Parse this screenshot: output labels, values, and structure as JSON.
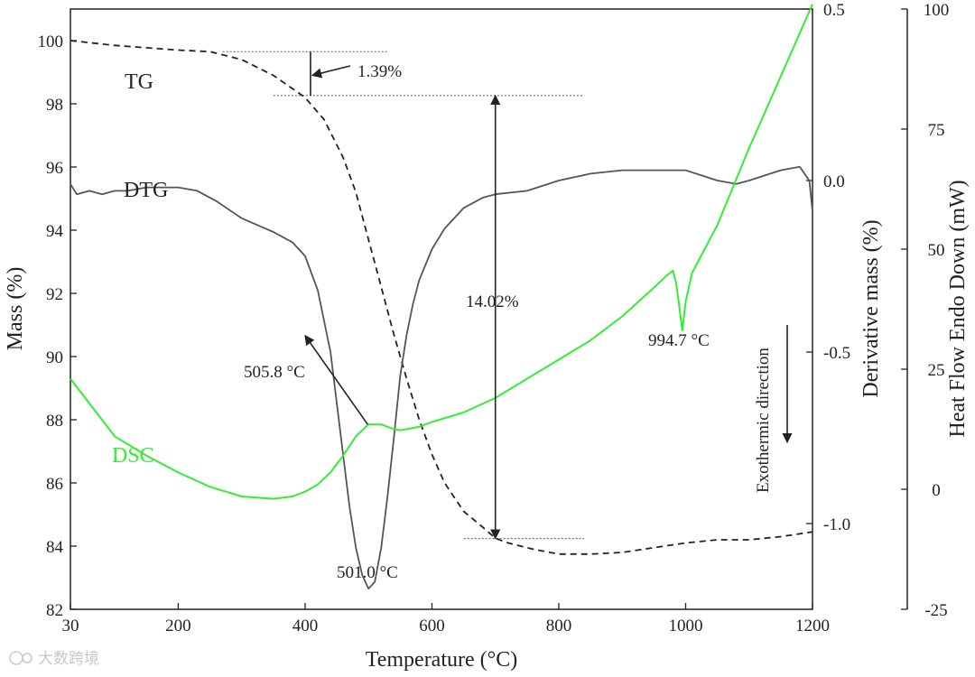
{
  "chart_data": {
    "type": "line",
    "xlabel": "Temperature (°C)",
    "ylabel_left": "Mass (%)",
    "ylabel_right_inner": "Derivative mass (%)",
    "ylabel_right_outer": "Heat Flow Endo Down (mW)",
    "xlim": [
      30,
      1200
    ],
    "ylim_mass": [
      82,
      101
    ],
    "ylim_deriv": [
      -1.25,
      0.5
    ],
    "ylim_heat": [
      -25,
      100
    ],
    "x_ticks": [
      30,
      200,
      400,
      600,
      800,
      1000,
      1200
    ],
    "mass_ticks": [
      82,
      84,
      86,
      88,
      90,
      92,
      94,
      96,
      98,
      100
    ],
    "deriv_ticks": [
      0.5,
      0.0,
      -0.5,
      -1.0
    ],
    "deriv_tick_labels": [
      "0.5",
      "0.0",
      "-0.5",
      "-1.0"
    ],
    "heat_ticks": [
      100,
      75,
      50,
      25,
      0,
      -25
    ],
    "series": [
      {
        "name": "TG",
        "axis": "mass",
        "color": "#222222",
        "dash": "dashed",
        "x": [
          30,
          100,
          200,
          250,
          300,
          350,
          400,
          430,
          460,
          480,
          500,
          520,
          540,
          560,
          580,
          600,
          620,
          650,
          680,
          700,
          720,
          760,
          800,
          850,
          900,
          950,
          1000,
          1050,
          1100,
          1150,
          1200
        ],
        "y": [
          100.0,
          99.85,
          99.7,
          99.65,
          99.4,
          98.9,
          98.2,
          97.5,
          96.3,
          95.2,
          93.7,
          92.2,
          90.7,
          89.3,
          88.0,
          86.9,
          86.0,
          85.1,
          84.6,
          84.25,
          84.1,
          83.9,
          83.75,
          83.75,
          83.8,
          83.95,
          84.1,
          84.2,
          84.2,
          84.3,
          84.45
        ]
      },
      {
        "name": "DTG",
        "axis": "deriv",
        "color": "#555555",
        "dash": "solid",
        "x": [
          30,
          40,
          60,
          80,
          100,
          120,
          150,
          180,
          200,
          230,
          260,
          300,
          350,
          380,
          400,
          420,
          440,
          460,
          470,
          480,
          490,
          500,
          510,
          520,
          530,
          540,
          550,
          560,
          570,
          580,
          600,
          620,
          650,
          680,
          700,
          750,
          800,
          850,
          900,
          950,
          1000,
          1050,
          1080,
          1100,
          1150,
          1180,
          1195,
          1200
        ],
        "y": [
          -0.01,
          -0.04,
          -0.03,
          -0.04,
          -0.03,
          -0.03,
          -0.02,
          -0.02,
          -0.02,
          -0.03,
          -0.06,
          -0.11,
          -0.15,
          -0.18,
          -0.22,
          -0.32,
          -0.5,
          -0.8,
          -0.95,
          -1.07,
          -1.15,
          -1.19,
          -1.17,
          -1.07,
          -0.92,
          -0.75,
          -0.57,
          -0.45,
          -0.36,
          -0.29,
          -0.2,
          -0.14,
          -0.08,
          -0.05,
          -0.04,
          -0.03,
          0.0,
          0.02,
          0.03,
          0.03,
          0.03,
          0.0,
          -0.01,
          0.0,
          0.03,
          0.04,
          0.0,
          -0.09
        ]
      },
      {
        "name": "DSC",
        "axis": "heat",
        "color": "#33ee33",
        "dash": "solid",
        "x": [
          30,
          100,
          150,
          200,
          250,
          300,
          350,
          380,
          400,
          420,
          440,
          460,
          480,
          500,
          520,
          530,
          540,
          550,
          560,
          580,
          600,
          650,
          700,
          750,
          800,
          850,
          900,
          950,
          970,
          980,
          985,
          990,
          994.7,
          1000,
          1010,
          1050,
          1100,
          1150,
          1200
        ],
        "y": [
          23,
          11,
          7,
          3.5,
          0.5,
          -1.5,
          -2.0,
          -1.5,
          -0.5,
          1.0,
          3.5,
          7,
          11,
          13.5,
          13.5,
          13,
          12.5,
          12.3,
          12.5,
          13,
          14,
          16,
          19,
          23,
          27,
          31,
          36,
          42,
          44.5,
          45.5,
          43,
          38,
          33,
          39,
          45,
          55,
          71,
          86,
          101
        ]
      }
    ],
    "labels": {
      "tg": "TG",
      "dtg": "DTG",
      "dsc": "DSC"
    },
    "annotations": {
      "step1": "1.39%",
      "step2": "14.02%",
      "peak_dsc": "505.8 °C",
      "peak_dtg": "501.0 °C",
      "peak_dsc2": "994.7 °C",
      "exo": "Exothermic direction"
    },
    "annotation_values": {
      "step1_x": 400,
      "step1_top": 99.65,
      "step1_bottom": 98.26,
      "step2_x": 700,
      "step2_top": 98.26,
      "step2_bottom": 84.24,
      "dsc_peak_x": 505.8,
      "dtg_peak_x": 501.0,
      "dsc_peak2_x": 994.7
    }
  },
  "watermark": "大数跨境"
}
